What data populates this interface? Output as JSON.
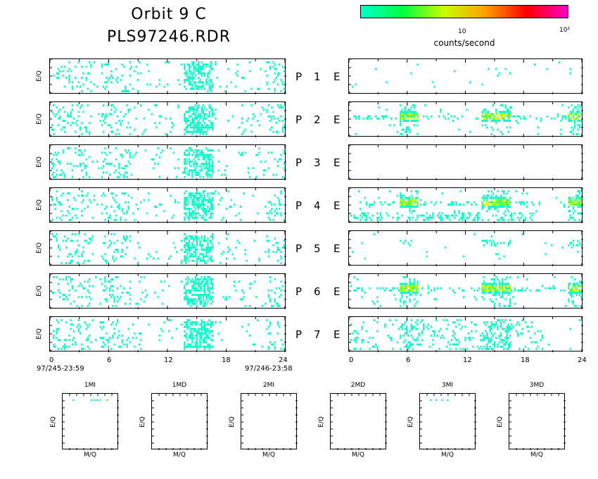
{
  "title": {
    "line1": "Orbit  9  C",
    "line2": "PLS97246.RDR"
  },
  "colorbar": {
    "unit_label": "counts/second",
    "tick_10": "10",
    "tick_100": "10²",
    "gradient": [
      "#00ffc8",
      "#00ff40",
      "#c8ff00",
      "#ffa000",
      "#ff0000",
      "#ff00c8"
    ]
  },
  "colors": {
    "low": "#00ffc8",
    "mid": "#40ff40",
    "high": "#c8ff00",
    "axis": "#000000"
  },
  "panel_ylabel": "E/Q",
  "rows": [
    {
      "P": "P",
      "num": "1",
      "E": "E"
    },
    {
      "P": "P",
      "num": "2",
      "E": "E"
    },
    {
      "P": "P",
      "num": "3",
      "E": "E"
    },
    {
      "P": "P",
      "num": "4",
      "E": "E"
    },
    {
      "P": "P",
      "num": "5",
      "E": "E"
    },
    {
      "P": "P",
      "num": "6",
      "E": "E"
    },
    {
      "P": "P",
      "num": "7",
      "E": "E"
    }
  ],
  "x_tick_labels": [
    "0",
    "6",
    "12",
    "18",
    "24"
  ],
  "date_start": "97/245-23:59",
  "date_end": "97/246-23:58",
  "small_panels": [
    {
      "title": "1MI",
      "ylabel": "E/Q",
      "xlabel": "M/Q"
    },
    {
      "title": "1MD",
      "ylabel": "E/Q",
      "xlabel": "M/Q"
    },
    {
      "title": "2MI",
      "ylabel": "E/Q",
      "xlabel": "M/Q"
    },
    {
      "title": "2MD",
      "ylabel": "E/Q",
      "xlabel": "M/Q"
    },
    {
      "title": "3MI",
      "ylabel": "E/Q",
      "xlabel": "M/Q"
    },
    {
      "title": "3MD",
      "ylabel": "E/Q",
      "xlabel": "M/Q"
    }
  ],
  "chart_data": {
    "type": "heatmap",
    "xlim": [
      0,
      24
    ],
    "x_ticks": [
      0,
      6,
      12,
      18,
      24
    ],
    "color_scale": "log",
    "color_range": [
      1,
      100
    ],
    "left_column": {
      "description_key": "row-1..7 left spectrograms",
      "activity_bands_hours": [
        [
          0,
          4
        ],
        [
          5,
          8
        ],
        [
          13.5,
          16.5
        ],
        [
          22,
          24
        ]
      ],
      "peak_band_hours": [
        13.5,
        16.5
      ]
    },
    "right_column": {
      "rows_with_data": [
        "1",
        "2",
        "4",
        "5",
        "6",
        "7"
      ],
      "empty_rows": [
        "3"
      ],
      "strong_bands_hours": [
        [
          5,
          7
        ],
        [
          13.5,
          16.5
        ],
        [
          22.5,
          24
        ]
      ]
    },
    "small_panels_with_data": [
      "1MI",
      "3MI"
    ]
  }
}
